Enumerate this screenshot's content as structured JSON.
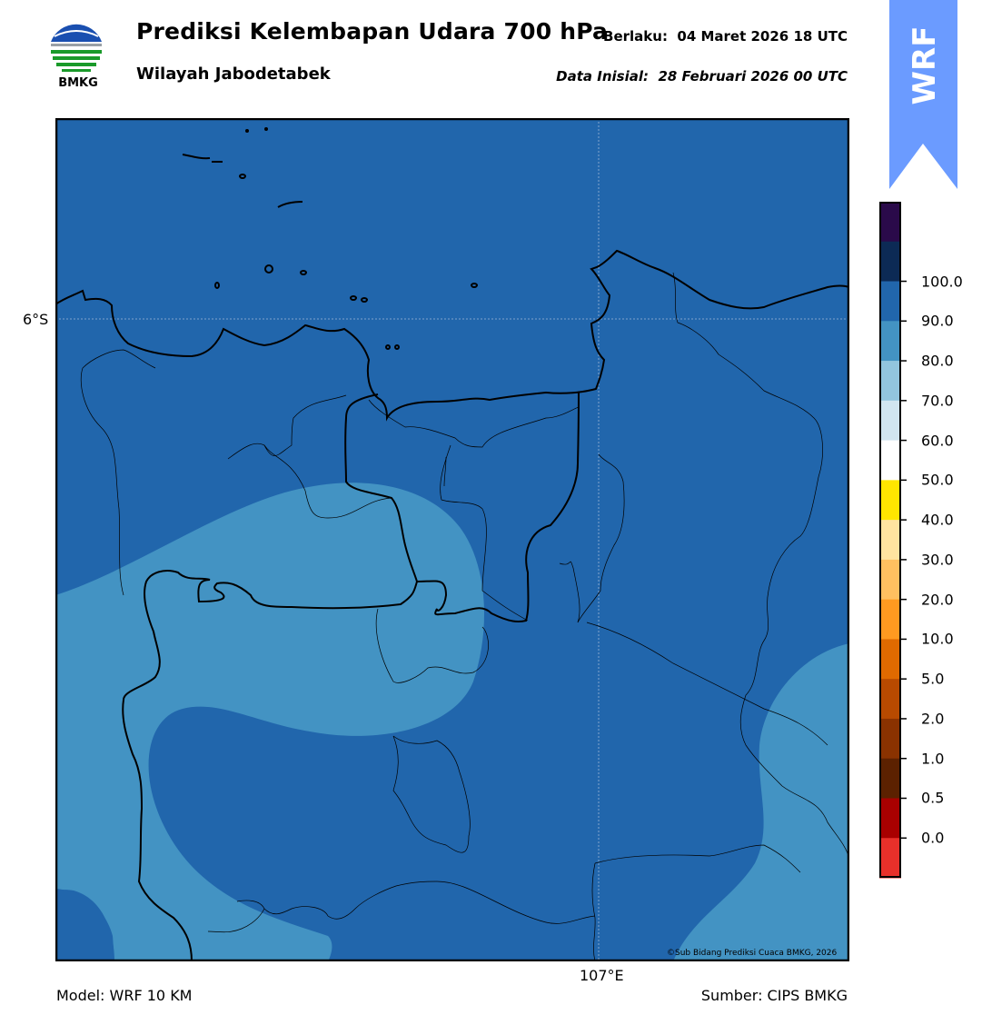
{
  "header": {
    "title": "Prediksi Kelembapan Udara 700 hPa",
    "subtitle": "Wilayah Jabodetabek",
    "valid_label": "Berlaku:",
    "valid_value": "04 Maret 2026 18 UTC",
    "init_label": "Data Inisial:",
    "init_value": "28 Februari 2026 00 UTC"
  },
  "logo": {
    "text": "BMKG",
    "icon": "bmkg-logo"
  },
  "badge": {
    "text": "WRF",
    "color": "#6b9bff"
  },
  "map": {
    "lat_tick": "6°S",
    "lon_tick": "107°E",
    "copyright": "©Sub Bidang Prediksi Cuaca BMKG, 2026"
  },
  "footer": {
    "model": "Model: WRF 10 KM",
    "source": "Sumber: CIPS BMKG"
  },
  "colorbar": {
    "labels": [
      "100.0",
      "90.0",
      "80.0",
      "70.0",
      "60.0",
      "50.0",
      "40.0",
      "30.0",
      "20.0",
      "10.0",
      "5.0",
      "2.0",
      "1.0",
      "0.5",
      "0.0"
    ],
    "colors_top_to_bottom": [
      "#2a0a4a",
      "#0c2a55",
      "#2166ac",
      "#4393c3",
      "#92c5de",
      "#d1e5f0",
      "#ffffff",
      "#ffe600",
      "#ffe4a0",
      "#ffc060",
      "#ff9a20",
      "#e06a00",
      "#b84a00",
      "#8a3200",
      "#5c2100",
      "#a80000",
      "#e8302a"
    ],
    "land_sea_color": "#2166ac",
    "lower_humidity_color": "#4393c3"
  }
}
